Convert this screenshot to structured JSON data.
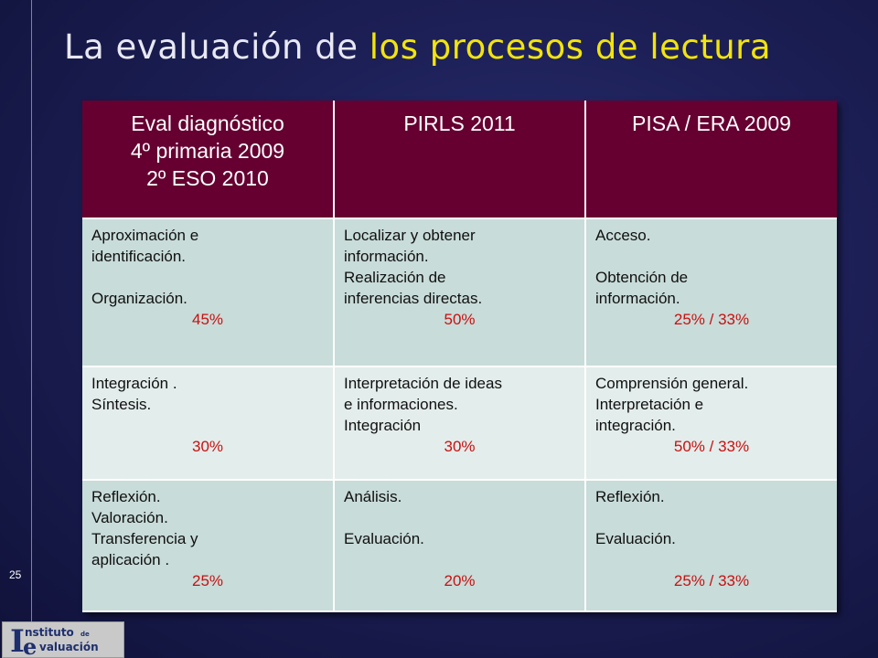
{
  "title": {
    "part1": "La evaluación de",
    "part2": "los procesos de lectura"
  },
  "page_number": "25",
  "table": {
    "headers": [
      [
        "Eval diagnóstico",
        "4º primaria 2009",
        "2º ESO 2010"
      ],
      [
        "PIRLS 2011"
      ],
      [
        "PISA / ERA 2009"
      ]
    ],
    "rows": [
      [
        {
          "lines": [
            "Aproximación e",
            "identificación.",
            "",
            "Organización."
          ],
          "pct": "45%"
        },
        {
          "lines": [
            "Localizar y obtener",
            "información.",
            "Realización  de",
            "inferencias directas."
          ],
          "pct": "50%"
        },
        {
          "lines": [
            "Acceso.",
            "",
            "Obtención de",
            "información."
          ],
          "pct": "25% / 33%"
        }
      ],
      [
        {
          "lines": [
            "Integración .",
            "Síntesis.",
            ""
          ],
          "pct": "30%"
        },
        {
          "lines": [
            "Interpretación de ideas",
            "e informaciones.",
            "Integración"
          ],
          "pct": "30%"
        },
        {
          "lines": [
            "Comprensión general.",
            "Interpretación  e",
            "integración."
          ],
          "pct": "50% / 33%"
        }
      ],
      [
        {
          "lines": [
            "Reflexión.",
            "Valoración.",
            "Transferencia y",
            "aplicación ."
          ],
          "pct": "25%"
        },
        {
          "lines": [
            "Análisis.",
            "",
            "Evaluación.",
            ""
          ],
          "pct": "20%"
        },
        {
          "lines": [
            "Reflexión.",
            "",
            "Evaluación.",
            ""
          ],
          "pct": "25% / 33%"
        }
      ]
    ]
  },
  "logo": {
    "big_i": "I",
    "word1": "nstituto",
    "small": "de",
    "big_e": "e",
    "word2": "valuación"
  }
}
